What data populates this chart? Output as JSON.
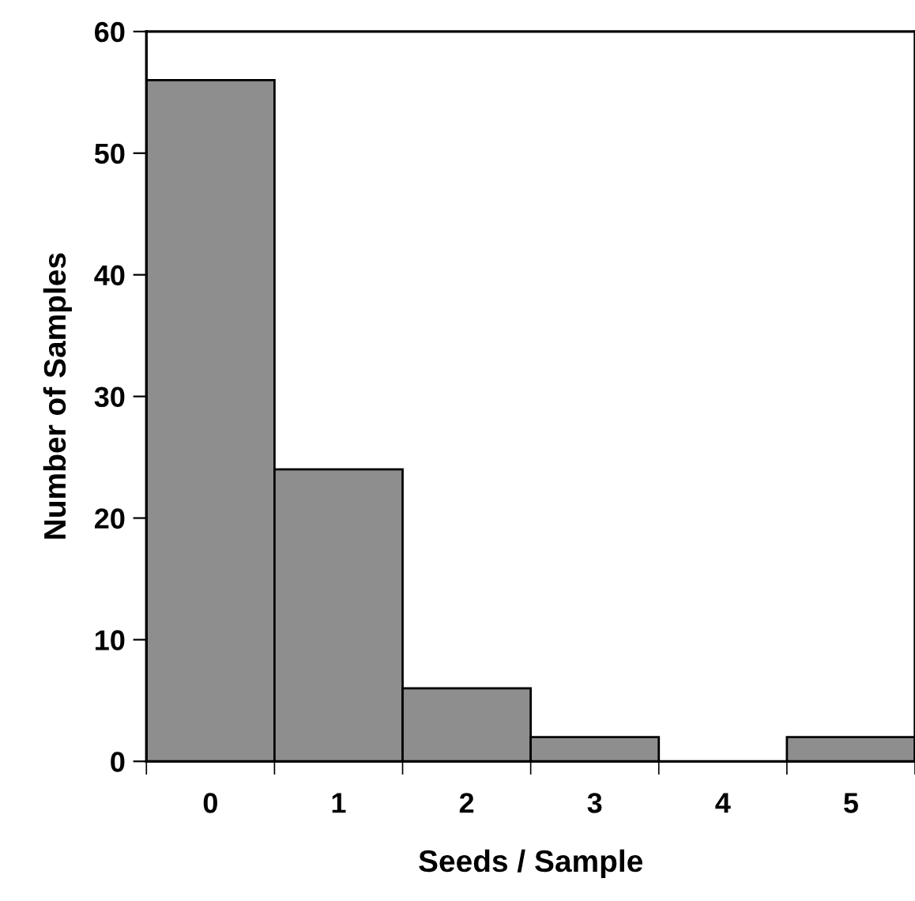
{
  "chart_data": {
    "type": "bar",
    "xlabel": "Seeds / Sample",
    "ylabel": "Number of Samples",
    "categories": [
      "0",
      "1",
      "2",
      "3",
      "4",
      "5"
    ],
    "values": [
      56,
      24,
      6,
      2,
      0,
      2
    ],
    "color": "#8e8e8e",
    "ylim": [
      0,
      60
    ],
    "yticks": [
      0,
      10,
      20,
      30,
      40,
      50,
      60
    ],
    "grid": false
  }
}
